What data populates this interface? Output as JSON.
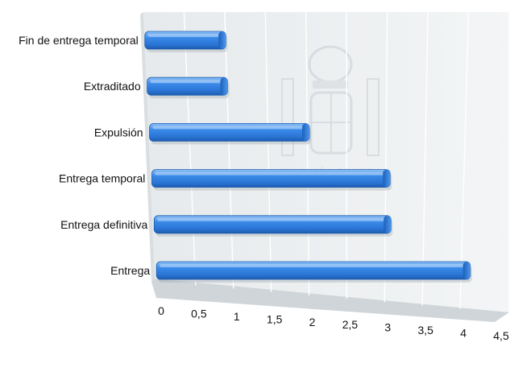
{
  "chart_data": {
    "type": "bar",
    "orientation": "horizontal",
    "categories": [
      "Fin de entrega temporal",
      "Extraditado",
      "Expulsión",
      "Entrega temporal",
      "Entrega definitiva",
      "Entrega"
    ],
    "values": [
      1,
      1,
      2,
      3,
      3,
      4
    ],
    "xlim": [
      0,
      4.5
    ],
    "ticks": [
      "0",
      "0,5",
      "1",
      "1,5",
      "2",
      "2,5",
      "3",
      "3,5",
      "4",
      "4,5"
    ],
    "tick_values": [
      0,
      0.5,
      1,
      1.5,
      2,
      2.5,
      3,
      3.5,
      4,
      4.5
    ],
    "title": "",
    "xlabel": "",
    "ylabel": "",
    "grid": true,
    "legend": "none",
    "style": "3d-perspective"
  },
  "watermark": {
    "text": "FISCALÍA GENERAL"
  },
  "colors": {
    "bar": "#2f7fe0",
    "bar_light": "#7fb6f5",
    "bar_dark": "#1c5cb0",
    "wall": "#ebeff0",
    "floor": "#d5dadd",
    "grid": "#ffffff"
  }
}
